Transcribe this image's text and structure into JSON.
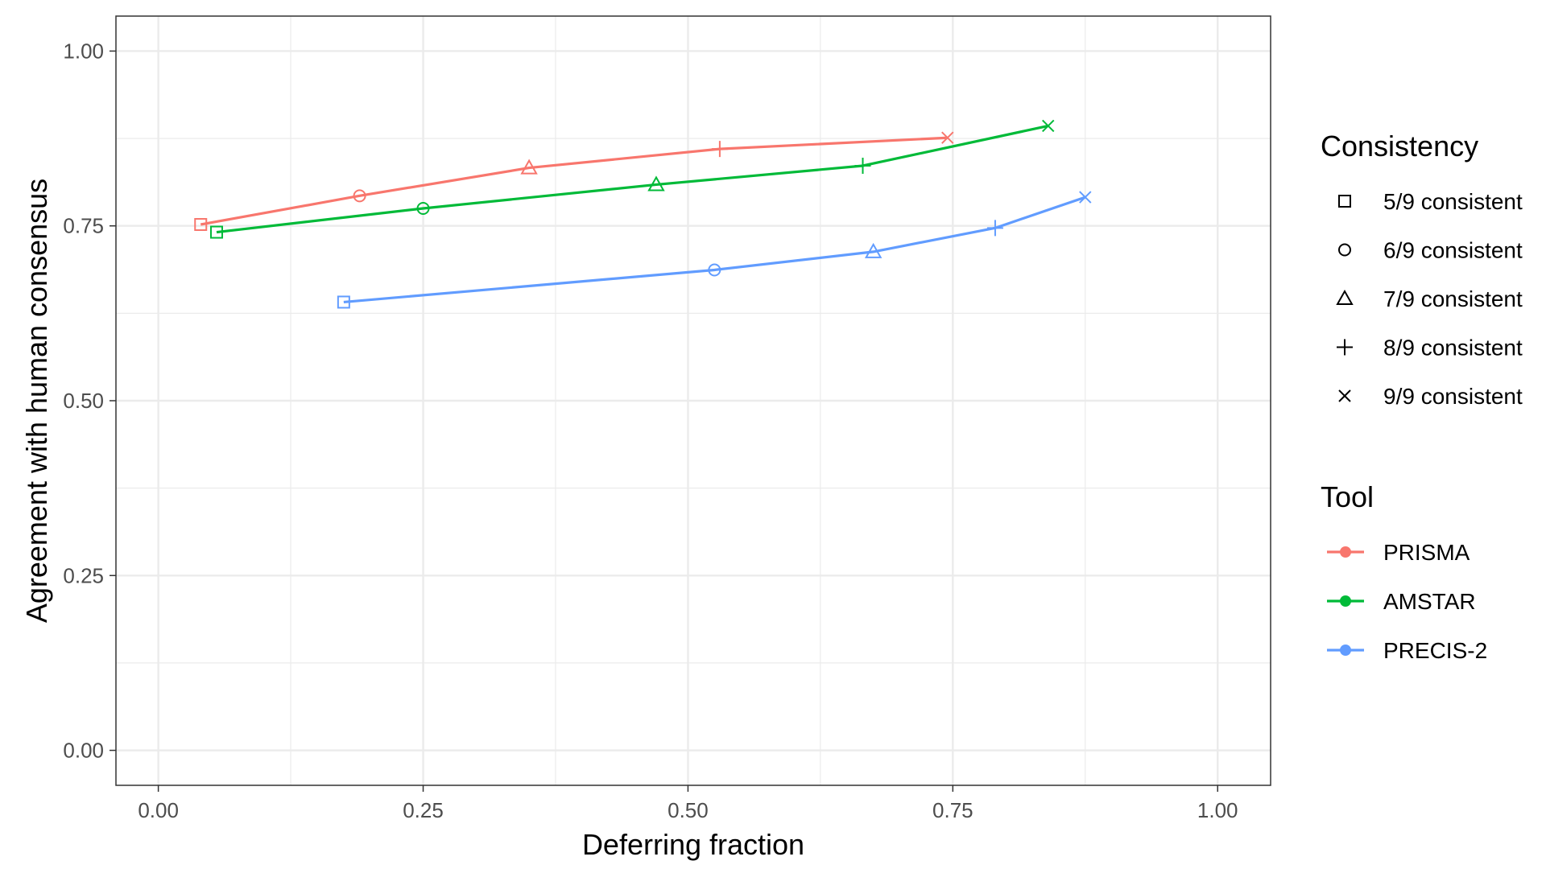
{
  "chart_data": {
    "type": "line",
    "xlabel": "Deferring fraction",
    "ylabel": "Agreement with human consensus",
    "xlim": [
      -0.04,
      1.05
    ],
    "ylim": [
      -0.05,
      1.05
    ],
    "x_ticks": [
      0,
      0.25,
      0.5,
      0.75,
      1
    ],
    "x_tick_labels": [
      "0.00",
      "0.25",
      "0.50",
      "0.75",
      "1.00"
    ],
    "y_ticks": [
      0,
      0.25,
      0.5,
      0.75,
      1
    ],
    "y_tick_labels": [
      "0.00",
      "0.25",
      "0.50",
      "0.75",
      "1.00"
    ],
    "grid": true,
    "series": [
      {
        "name": "PRISMA",
        "color": "#F8766D",
        "points": [
          {
            "x": 0.04,
            "y": 0.752,
            "shape": "square"
          },
          {
            "x": 0.19,
            "y": 0.793,
            "shape": "circle"
          },
          {
            "x": 0.35,
            "y": 0.833,
            "shape": "triangle"
          },
          {
            "x": 0.53,
            "y": 0.86,
            "shape": "plus"
          },
          {
            "x": 0.745,
            "y": 0.876,
            "shape": "cross"
          }
        ]
      },
      {
        "name": "AMSTAR",
        "color": "#00BA38",
        "points": [
          {
            "x": 0.055,
            "y": 0.741,
            "shape": "square"
          },
          {
            "x": 0.25,
            "y": 0.775,
            "shape": "circle"
          },
          {
            "x": 0.47,
            "y": 0.809,
            "shape": "triangle"
          },
          {
            "x": 0.665,
            "y": 0.836,
            "shape": "plus"
          },
          {
            "x": 0.84,
            "y": 0.893,
            "shape": "cross"
          }
        ]
      },
      {
        "name": "PRECIS-2",
        "color": "#619CFF",
        "points": [
          {
            "x": 0.175,
            "y": 0.641,
            "shape": "square"
          },
          {
            "x": 0.525,
            "y": 0.687,
            "shape": "circle"
          },
          {
            "x": 0.675,
            "y": 0.713,
            "shape": "triangle"
          },
          {
            "x": 0.79,
            "y": 0.747,
            "shape": "plus"
          },
          {
            "x": 0.875,
            "y": 0.791,
            "shape": "cross"
          }
        ]
      }
    ],
    "legends": [
      {
        "title": "Consistency",
        "entries": [
          {
            "label": "5/9 consistent",
            "shape": "square"
          },
          {
            "label": "6/9 consistent",
            "shape": "circle"
          },
          {
            "label": "7/9 consistent",
            "shape": "triangle"
          },
          {
            "label": "8/9 consistent",
            "shape": "plus"
          },
          {
            "label": "9/9 consistent",
            "shape": "cross"
          }
        ]
      },
      {
        "title": "Tool",
        "entries": [
          {
            "label": "PRISMA",
            "color": "#F8766D"
          },
          {
            "label": "AMSTAR",
            "color": "#00BA38"
          },
          {
            "label": "PRECIS-2",
            "color": "#619CFF"
          }
        ]
      }
    ],
    "legend_position": "right"
  }
}
